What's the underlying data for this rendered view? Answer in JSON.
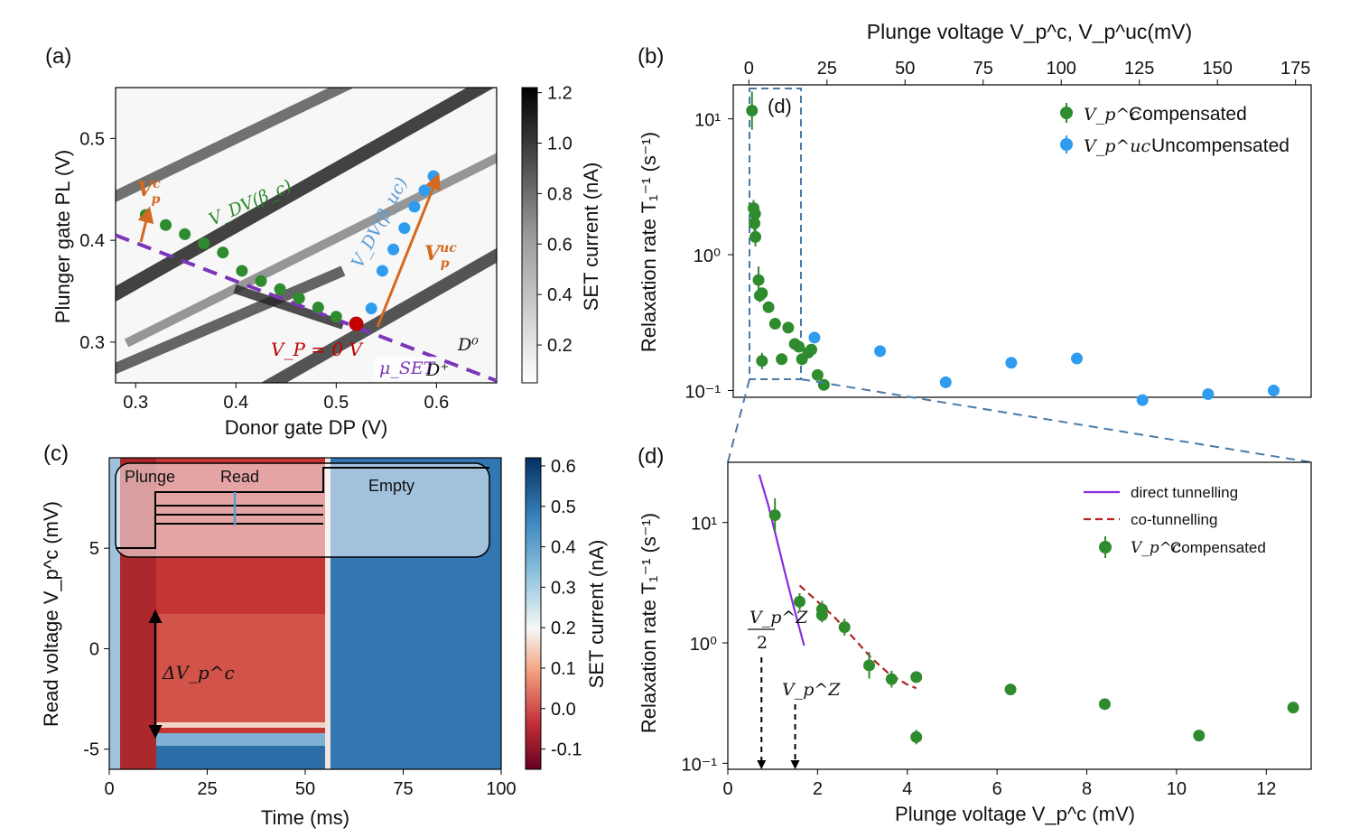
{
  "panel_labels": {
    "a": "(a)",
    "b": "(b)",
    "c": "(c)",
    "d": "(d)"
  },
  "colors": {
    "green": "#2e8b2e",
    "blue": "#2f9cf0",
    "purple": "#7b35b8",
    "orange": "#d2691e",
    "red": "#c00000",
    "darkred": "#b22222",
    "dashblue": "#4a79a6"
  },
  "panel_a": {
    "xlabel": "Donor gate DP (V)",
    "ylabel": "Plunger gate PL (V)",
    "colorbar_label": "SET current (nA)",
    "colorbar_ticks": [
      "0.2",
      "0.4",
      "0.6",
      "0.8",
      "1.0",
      "1.2"
    ],
    "xticks": [
      "0.3",
      "0.4",
      "0.5",
      "0.6"
    ],
    "yticks": [
      "0.3",
      "0.4",
      "0.5"
    ],
    "annot_vpc_base": "V",
    "annot_vpc_sup": "c",
    "annot_vpc_sub": "p",
    "annot_vpuc_base": "V",
    "annot_vpuc_sup": "uc",
    "annot_vpuc_sub": "p",
    "annot_vdv_c": "V_DV(β_c)",
    "annot_vdv_uc": "V_DV(β_uc)",
    "annot_vp0": "V_P = 0 V",
    "annot_mu": "μ_SET",
    "annot_d0": "D⁰",
    "annot_dplus": "D⁺"
  },
  "panel_b": {
    "xlabel_top": "Plunge voltage V_p^c, V_p^uc(mV)",
    "ylabel": "Relaxation rate T₁⁻¹ (s⁻¹)",
    "xticks": [
      "0",
      "25",
      "50",
      "75",
      "100",
      "125",
      "150",
      "175"
    ],
    "yticks": [
      "10⁻¹",
      "10⁰",
      "10¹"
    ],
    "inset_label": "(d)",
    "legend": [
      {
        "sym": "V_p^c",
        "text": "Compensated"
      },
      {
        "sym": "V_p^uc",
        "text": "Uncompensated"
      }
    ]
  },
  "panel_c": {
    "xlabel": "Time (ms)",
    "ylabel": "Read voltage V_p^c (mV)",
    "colorbar_label": "SET current (nA)",
    "colorbar_ticks": [
      "-0.1",
      "0.0",
      "0.1",
      "0.2",
      "0.3",
      "0.4",
      "0.5",
      "0.6"
    ],
    "xticks": [
      "0",
      "25",
      "50",
      "75",
      "100"
    ],
    "yticks": [
      "-5",
      "0",
      "5"
    ],
    "inset_plunge": "Plunge",
    "inset_read": "Read",
    "inset_empty": "Empty",
    "delta_label": "ΔV_p^c"
  },
  "panel_d": {
    "xlabel": "Plunge voltage V_p^c (mV)",
    "ylabel": "Relaxation rate T₁⁻¹ (s⁻¹)",
    "xticks": [
      "0",
      "2",
      "4",
      "6",
      "8",
      "10",
      "12"
    ],
    "yticks": [
      "10⁻¹",
      "10⁰",
      "10¹"
    ],
    "legend": [
      {
        "text": "direct tunnelling"
      },
      {
        "text": "co-tunnelling"
      },
      {
        "text": "Compensated"
      }
    ],
    "annot_vz2_num": "V_p^Z",
    "annot_vz2_den": "2",
    "annot_vz": "V_p^Z"
  },
  "chart_data": [
    {
      "type": "heatmap",
      "id": "a",
      "xlim": [
        0.28,
        0.66
      ],
      "ylim": [
        0.26,
        0.55
      ],
      "colorbar_range": [
        0.05,
        1.22
      ],
      "dots_compensated": {
        "x": [
          0.31,
          0.33,
          0.349,
          0.368,
          0.387,
          0.406,
          0.425,
          0.444,
          0.463,
          0.482,
          0.5
        ],
        "y": [
          0.425,
          0.415,
          0.406,
          0.397,
          0.388,
          0.37,
          0.36,
          0.352,
          0.343,
          0.334,
          0.325
        ]
      },
      "dots_uncompensated": {
        "x": [
          0.535,
          0.546,
          0.557,
          0.568,
          0.578,
          0.588,
          0.597
        ],
        "y": [
          0.333,
          0.37,
          0.391,
          0.412,
          0.433,
          0.449,
          0.463
        ]
      },
      "origin_point": {
        "x": 0.52,
        "y": 0.318
      },
      "mu_set_line": {
        "x": [
          0.28,
          0.66
        ],
        "y": [
          0.405,
          0.262
        ]
      }
    },
    {
      "type": "scatter",
      "id": "b",
      "xlim": [
        -5,
        180
      ],
      "ylim_log": [
        -1.05,
        1.25
      ],
      "yscale": "log",
      "series": [
        {
          "name": "Compensated",
          "x": [
            1.0,
            1.5,
            2.0,
            1.8,
            2.1,
            3.1,
            3.5,
            4.2,
            4.2,
            6.3,
            8.4,
            10.5,
            12.6,
            14.7,
            16.0,
            17.0,
            19.0,
            20.0,
            22.0,
            24.0
          ],
          "y": [
            11.5,
            2.2,
            2.0,
            1.7,
            1.35,
            0.65,
            0.5,
            0.52,
            0.165,
            0.41,
            0.31,
            0.17,
            0.29,
            0.22,
            0.21,
            0.17,
            0.19,
            0.2,
            0.13,
            0.11
          ],
          "err": [
            0.14,
            0.06,
            0.05,
            0.06,
            0.07,
            0.1,
            0.05,
            0.04,
            0.06,
            0.03,
            0.03,
            0.03,
            0.03,
            0.03,
            0.03,
            0.03,
            0.03,
            0.03,
            0.03,
            0.03
          ]
        },
        {
          "name": "Uncompensated",
          "x": [
            21.0,
            42.0,
            63.0,
            84.0,
            105.0,
            126.0,
            147.0,
            168.0
          ],
          "y": [
            0.245,
            0.195,
            0.115,
            0.16,
            0.172,
            0.085,
            0.094,
            0.1
          ]
        }
      ]
    },
    {
      "type": "heatmap",
      "id": "c",
      "xlim": [
        0,
        100
      ],
      "ylim": [
        -6,
        9.5
      ],
      "colorbar_range": [
        -0.15,
        0.62
      ],
      "plunge_end_ms": 12,
      "read_end_ms": 56
    },
    {
      "type": "scatter",
      "id": "d",
      "xlim": [
        0,
        13
      ],
      "ylim_log": [
        -1.05,
        1.5
      ],
      "yscale": "log",
      "series": [
        {
          "name": "Compensated",
          "x": [
            1.05,
            1.6,
            2.1,
            2.1,
            2.6,
            3.15,
            3.65,
            4.2,
            4.2,
            6.3,
            8.4,
            10.5,
            12.6
          ],
          "y": [
            11.5,
            2.2,
            1.9,
            1.7,
            1.35,
            0.65,
            0.5,
            0.52,
            0.165,
            0.41,
            0.31,
            0.17,
            0.29
          ],
          "err": [
            0.14,
            0.07,
            0.07,
            0.06,
            0.07,
            0.11,
            0.07,
            0.04,
            0.06,
            0.03,
            0.03,
            0.03,
            0.03
          ]
        },
        {
          "name": "direct tunnelling",
          "x": [
            0.7,
            0.9,
            1.1,
            1.3,
            1.5,
            1.7
          ],
          "y": [
            25,
            14,
            7.0,
            3.5,
            1.8,
            0.95
          ]
        },
        {
          "name": "co-tunnelling",
          "x": [
            1.6,
            2.0,
            2.4,
            2.8,
            3.2,
            3.6,
            4.0,
            4.2
          ],
          "y": [
            3.0,
            2.2,
            1.6,
            1.1,
            0.75,
            0.55,
            0.45,
            0.42
          ]
        }
      ],
      "markers": {
        "vz_half": 0.75,
        "vz": 1.5
      }
    }
  ]
}
